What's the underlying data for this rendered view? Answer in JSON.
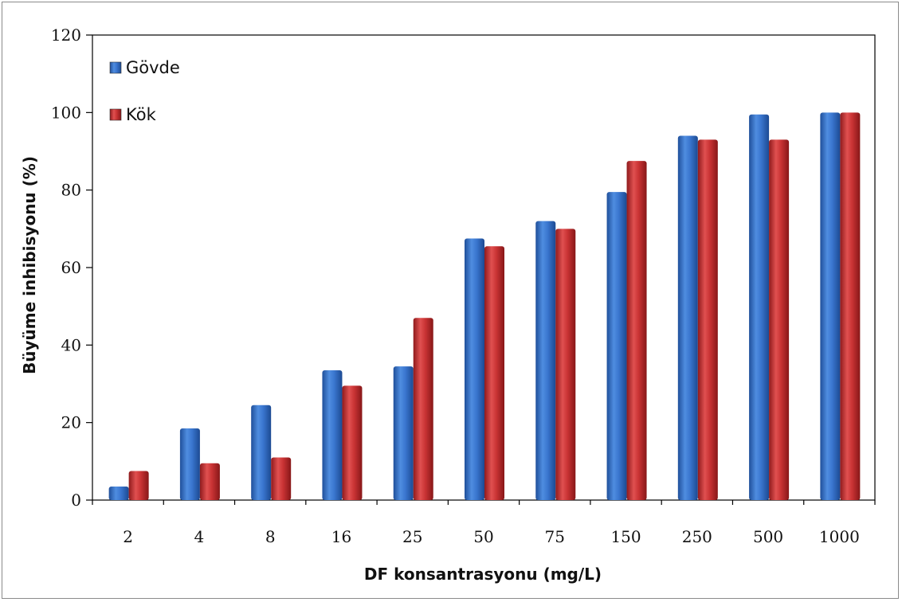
{
  "chart_data": {
    "type": "bar",
    "categories": [
      "2",
      "4",
      "8",
      "16",
      "25",
      "50",
      "75",
      "150",
      "250",
      "500",
      "1000"
    ],
    "series": [
      {
        "name": "Gövde",
        "color": "#2f6fc7",
        "values": [
          3.5,
          18.5,
          24.5,
          33.5,
          34.5,
          67.5,
          72.0,
          79.5,
          94.0,
          99.5,
          100.0
        ]
      },
      {
        "name": "Kök",
        "color": "#c8282b",
        "values": [
          7.5,
          9.5,
          11.0,
          29.5,
          47.0,
          65.5,
          70.0,
          87.5,
          93.0,
          93.0,
          100.0
        ]
      }
    ],
    "xlabel": "DF konsantrasyonu (mg/L)",
    "ylabel": "Büyüme inhibisyonu (%)",
    "ylim": [
      0,
      120
    ],
    "yticks": [
      "0",
      "20",
      "40",
      "60",
      "80",
      "100",
      "120"
    ],
    "grid": false,
    "legend_position": "top-left"
  }
}
